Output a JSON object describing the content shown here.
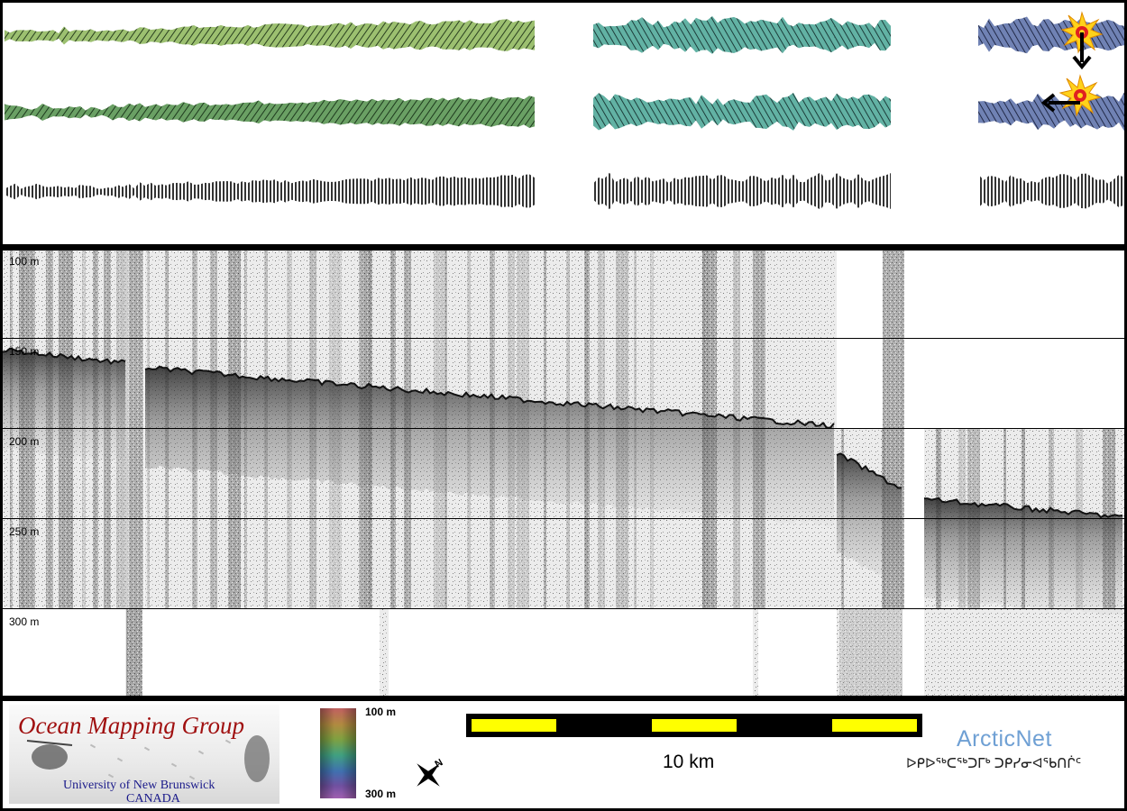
{
  "profile": {
    "depth_labels": [
      "100 m",
      "150 m",
      "200 m",
      "250 m",
      "300 m"
    ]
  },
  "legend": {
    "logo_title": "Ocean Mapping Group",
    "logo_university": "University of New Brunswick",
    "logo_country": "CANADA",
    "colorbar_top": "100 m",
    "colorbar_bottom": "300 m",
    "scale_label": "10 km",
    "partner_name": "ArcticNet",
    "partner_inuktitut": "ᐅᑭᐅᖅᑕᖅᑐᒥᒃ ᑐᑭᓯᓂᐊᖃᑎᒌᑦ"
  },
  "colors": {
    "swath_green": "#5a9a5a",
    "swath_teal": "#4a9a90",
    "swath_blue": "#5a6aa0",
    "scale_yellow": "#ffff00",
    "omg_red": "#a01010",
    "arctic_blue": "#6fa0d4"
  },
  "icons": [
    "north-arrow-icon",
    "sun-burst-icon",
    "arrow-down-icon",
    "arrow-left-icon"
  ]
}
